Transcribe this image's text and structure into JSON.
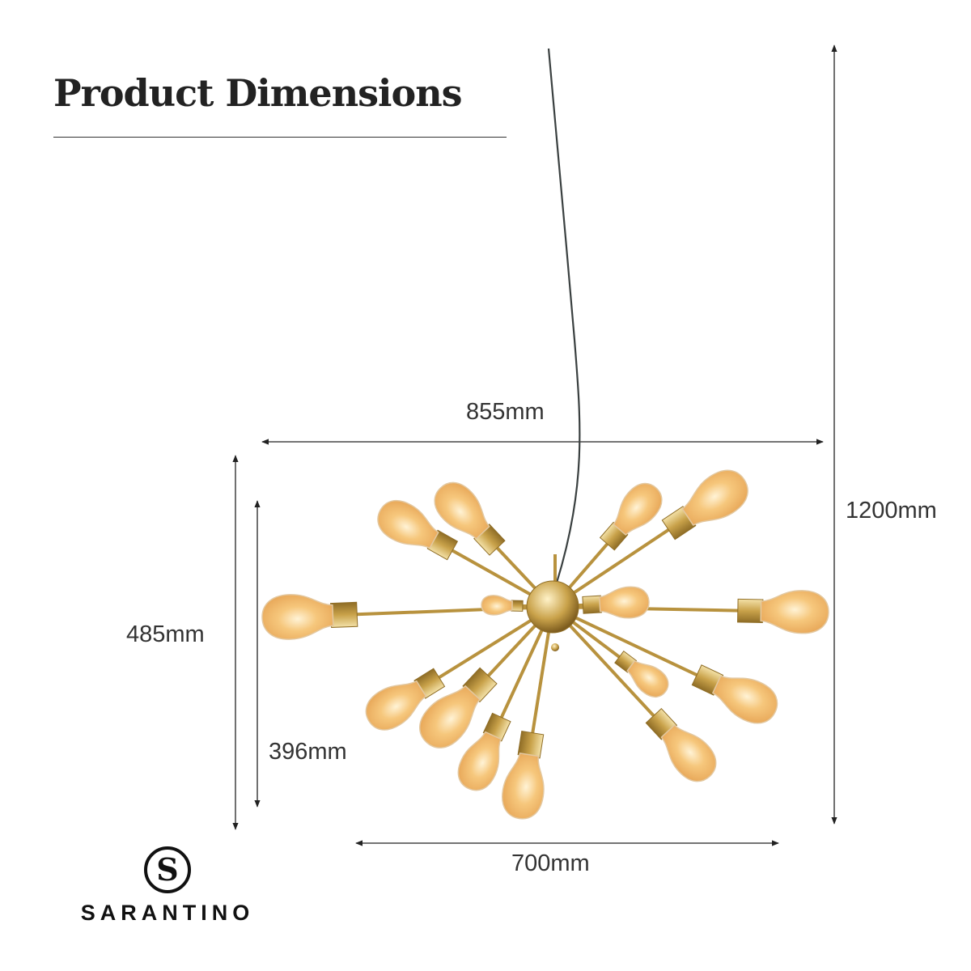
{
  "title": "Product Dimensions",
  "dimensions": {
    "overall_width": "855mm",
    "overall_height": "1200mm",
    "fixture_height": "485mm",
    "inner_height": "396mm",
    "inner_width": "700mm"
  },
  "brand": {
    "logo_letter": "S",
    "name": "SARANTINO"
  },
  "colors": {
    "gold": "#c9a24a",
    "bulb": "#f3b764",
    "line": "#222222"
  }
}
